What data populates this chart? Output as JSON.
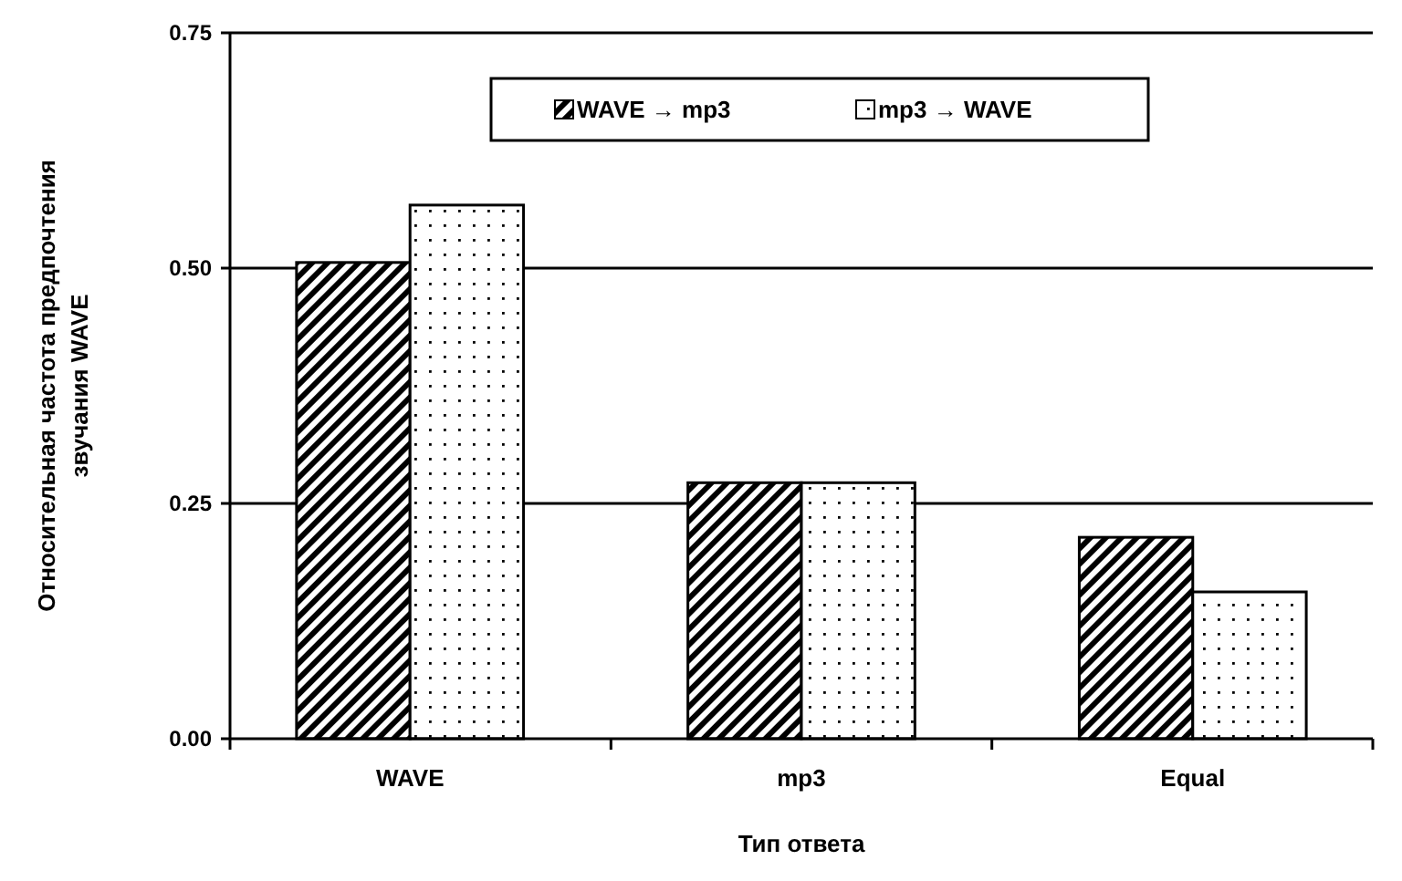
{
  "chart_data": {
    "type": "bar",
    "xlabel": "Тип ответа",
    "ylabel": "Относительная частота предпочтения звучания WAVE",
    "categories": [
      "WAVE",
      "mp3",
      "Equal"
    ],
    "series": [
      {
        "name": "WAVE → mp3",
        "color": "#000000",
        "values": [
          0.506,
          0.272,
          0.214
        ]
      },
      {
        "name": "mp3 → WAVE",
        "color": "#000000",
        "values": [
          0.567,
          0.272,
          0.156
        ]
      }
    ],
    "ylim": [
      0,
      0.75
    ],
    "yticks": [
      {
        "value": 0,
        "label": "0.00"
      },
      {
        "value": 0.25,
        "label": "0.25"
      },
      {
        "value": 0.5,
        "label": "0.50"
      },
      {
        "value": 0.75,
        "label": "0.75"
      }
    ],
    "grid": "y",
    "legend": "top"
  }
}
